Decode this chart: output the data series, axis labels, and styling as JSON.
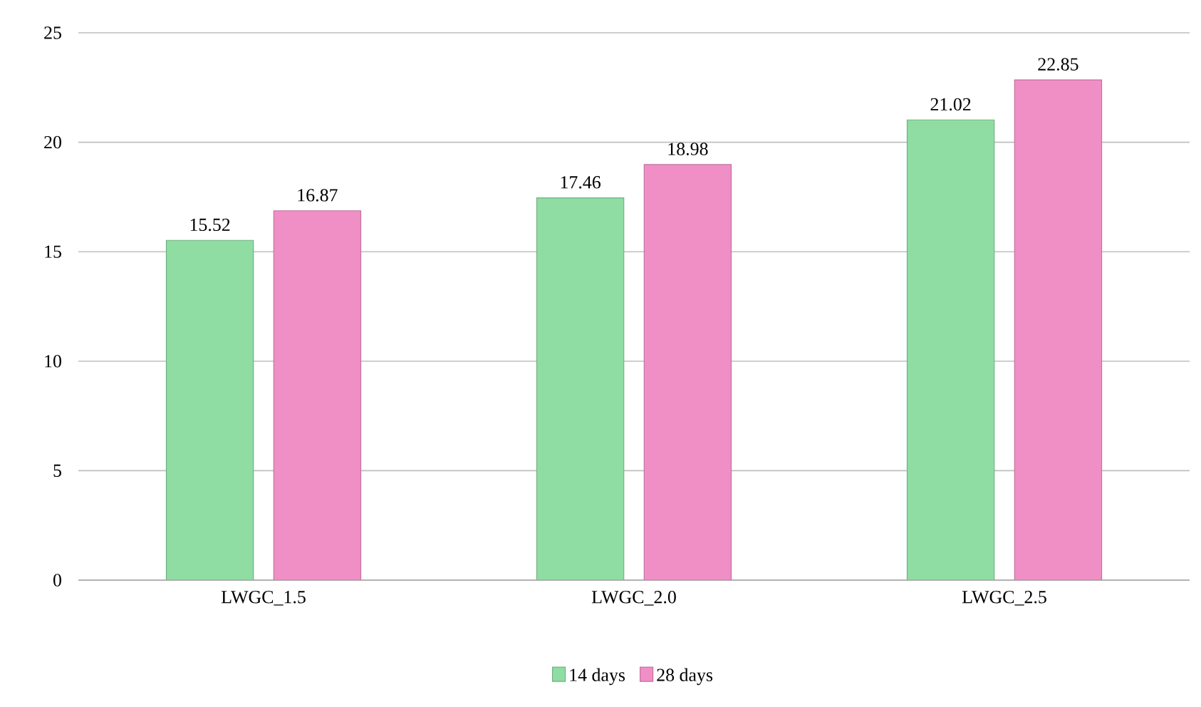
{
  "chart_data": {
    "type": "bar",
    "categories": [
      "LWGC_1.5",
      "LWGC_2.0",
      "LWGC_2.5"
    ],
    "series": [
      {
        "name": "14 days",
        "color": "#8fdda3",
        "values": [
          15.52,
          17.46,
          21.02
        ]
      },
      {
        "name": "28 days",
        "color": "#f08fc6",
        "values": [
          16.87,
          18.98,
          22.85
        ]
      }
    ],
    "ylim": [
      0,
      25
    ],
    "yticks": [
      0,
      5,
      10,
      15,
      20,
      25
    ],
    "grid": "y",
    "legend": "bottom",
    "data_labels": true
  }
}
